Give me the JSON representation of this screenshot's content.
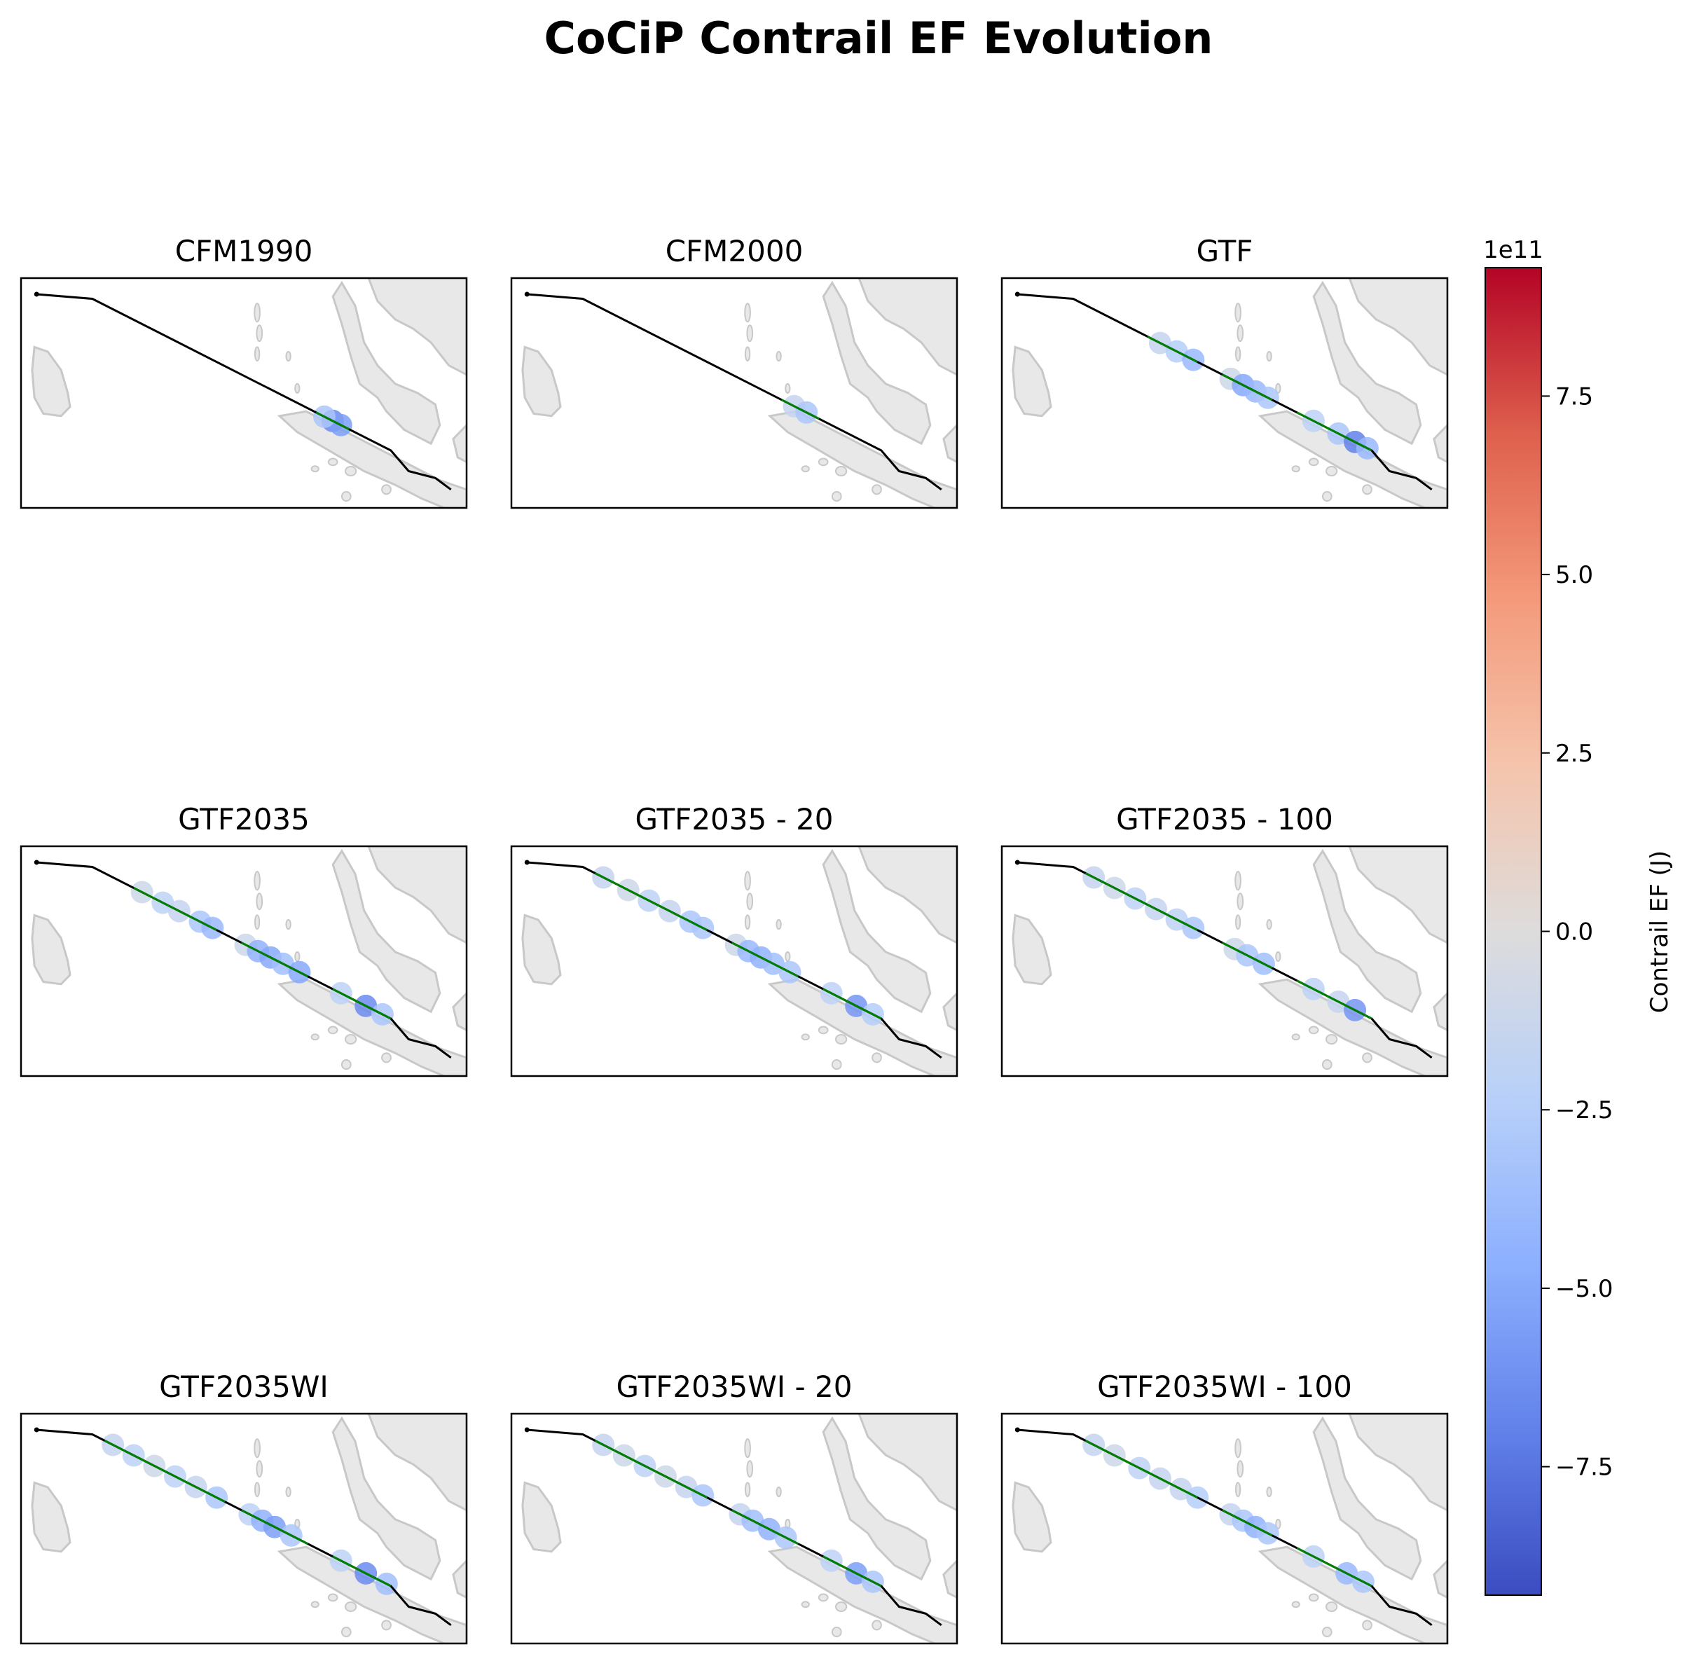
{
  "figure": {
    "title": "CoCiP Contrail EF Evolution"
  },
  "colorbar": {
    "label": "Contrail EF (J)",
    "offset_text": "1e11",
    "ticks": [
      "7.5",
      "5.0",
      "2.5",
      "0.0",
      "−2.5",
      "−5.0",
      "−7.5"
    ],
    "tick_values": [
      7.5,
      5.0,
      2.5,
      0.0,
      -2.5,
      -5.0,
      -7.5
    ],
    "range": [
      -9.3,
      9.3
    ],
    "colormap": "coolwarm",
    "colors": [
      "#3b4cc0",
      "#6282ea",
      "#8db0fe",
      "#b8d0f9",
      "#dddcdc",
      "#f5c4ac",
      "#f49a7b",
      "#de604d",
      "#b40426"
    ]
  },
  "colors": {
    "land": "#e8e8e8",
    "coast": "#c8c8c8",
    "flight_path": "#000000",
    "contrail_path": "#008000"
  },
  "chart_data": [
    {
      "type": "scatter",
      "title": "CFM1990",
      "contrail_segments": [
        [
          0.66,
          0.74
        ]
      ],
      "points": [
        {
          "t": 0.7,
          "ef": -6.5
        },
        {
          "t": 0.72,
          "ef": -5.5
        },
        {
          "t": 0.68,
          "ef": -3.0
        }
      ]
    },
    {
      "type": "scatter",
      "title": "CFM2000",
      "contrail_segments": [
        [
          0.6,
          0.69
        ]
      ],
      "points": [
        {
          "t": 0.63,
          "ef": -1.5
        },
        {
          "t": 0.66,
          "ef": -3.0
        }
      ]
    },
    {
      "type": "scatter",
      "title": "GTF",
      "contrail_segments": [
        [
          0.3,
          0.42
        ],
        [
          0.48,
          0.6
        ],
        [
          0.66,
          0.84
        ]
      ],
      "points": [
        {
          "t": 0.33,
          "ef": -1.5
        },
        {
          "t": 0.37,
          "ef": -2.5
        },
        {
          "t": 0.41,
          "ef": -4.0
        },
        {
          "t": 0.5,
          "ef": -1.0
        },
        {
          "t": 0.53,
          "ef": -5.0
        },
        {
          "t": 0.56,
          "ef": -4.0
        },
        {
          "t": 0.59,
          "ef": -3.0
        },
        {
          "t": 0.7,
          "ef": -2.0
        },
        {
          "t": 0.76,
          "ef": -3.0
        },
        {
          "t": 0.8,
          "ef": -7.0
        },
        {
          "t": 0.83,
          "ef": -4.0
        }
      ]
    },
    {
      "type": "scatter",
      "title": "GTF2035",
      "contrail_segments": [
        [
          0.22,
          0.42
        ],
        [
          0.48,
          0.64
        ],
        [
          0.7,
          0.84
        ]
      ],
      "points": [
        {
          "t": 0.24,
          "ef": -1.0
        },
        {
          "t": 0.29,
          "ef": -2.0
        },
        {
          "t": 0.33,
          "ef": -1.5
        },
        {
          "t": 0.38,
          "ef": -3.0
        },
        {
          "t": 0.41,
          "ef": -4.0
        },
        {
          "t": 0.49,
          "ef": -1.0
        },
        {
          "t": 0.52,
          "ef": -4.5
        },
        {
          "t": 0.55,
          "ef": -5.0
        },
        {
          "t": 0.58,
          "ef": -3.5
        },
        {
          "t": 0.62,
          "ef": -5.0
        },
        {
          "t": 0.72,
          "ef": -2.0
        },
        {
          "t": 0.78,
          "ef": -6.5
        },
        {
          "t": 0.82,
          "ef": -3.0
        }
      ]
    },
    {
      "type": "scatter",
      "title": "GTF2035 - 20",
      "contrail_segments": [
        [
          0.15,
          0.42
        ],
        [
          0.48,
          0.64
        ],
        [
          0.7,
          0.84
        ]
      ],
      "points": [
        {
          "t": 0.17,
          "ef": -1.5
        },
        {
          "t": 0.23,
          "ef": -1.0
        },
        {
          "t": 0.28,
          "ef": -2.0
        },
        {
          "t": 0.33,
          "ef": -1.5
        },
        {
          "t": 0.38,
          "ef": -3.0
        },
        {
          "t": 0.41,
          "ef": -3.0
        },
        {
          "t": 0.49,
          "ef": -1.0
        },
        {
          "t": 0.52,
          "ef": -4.0
        },
        {
          "t": 0.55,
          "ef": -4.5
        },
        {
          "t": 0.58,
          "ef": -3.5
        },
        {
          "t": 0.62,
          "ef": -3.0
        },
        {
          "t": 0.72,
          "ef": -2.0
        },
        {
          "t": 0.78,
          "ef": -6.0
        },
        {
          "t": 0.82,
          "ef": -2.5
        }
      ]
    },
    {
      "type": "scatter",
      "title": "GTF2035 - 100",
      "contrail_segments": [
        [
          0.15,
          0.42
        ],
        [
          0.48,
          0.6
        ],
        [
          0.66,
          0.84
        ]
      ],
      "points": [
        {
          "t": 0.17,
          "ef": -1.5
        },
        {
          "t": 0.22,
          "ef": -1.0
        },
        {
          "t": 0.27,
          "ef": -2.0
        },
        {
          "t": 0.32,
          "ef": -1.5
        },
        {
          "t": 0.37,
          "ef": -2.0
        },
        {
          "t": 0.41,
          "ef": -3.0
        },
        {
          "t": 0.51,
          "ef": -1.0
        },
        {
          "t": 0.54,
          "ef": -3.0
        },
        {
          "t": 0.58,
          "ef": -3.5
        },
        {
          "t": 0.7,
          "ef": -2.0
        },
        {
          "t": 0.76,
          "ef": -1.5
        },
        {
          "t": 0.8,
          "ef": -6.0
        }
      ]
    },
    {
      "type": "scatter",
      "title": "GTF2035WI",
      "contrail_segments": [
        [
          0.15,
          0.44
        ],
        [
          0.48,
          0.64
        ],
        [
          0.7,
          0.84
        ]
      ],
      "points": [
        {
          "t": 0.17,
          "ef": -1.5
        },
        {
          "t": 0.22,
          "ef": -2.0
        },
        {
          "t": 0.27,
          "ef": -1.0
        },
        {
          "t": 0.32,
          "ef": -2.0
        },
        {
          "t": 0.37,
          "ef": -1.5
        },
        {
          "t": 0.42,
          "ef": -3.0
        },
        {
          "t": 0.5,
          "ef": -2.0
        },
        {
          "t": 0.53,
          "ef": -4.5
        },
        {
          "t": 0.56,
          "ef": -5.5
        },
        {
          "t": 0.6,
          "ef": -3.0
        },
        {
          "t": 0.72,
          "ef": -2.0
        },
        {
          "t": 0.78,
          "ef": -6.5
        },
        {
          "t": 0.83,
          "ef": -3.5
        }
      ]
    },
    {
      "type": "scatter",
      "title": "GTF2035WI - 20",
      "contrail_segments": [
        [
          0.15,
          0.42
        ],
        [
          0.48,
          0.64
        ],
        [
          0.7,
          0.84
        ]
      ],
      "points": [
        {
          "t": 0.17,
          "ef": -1.5
        },
        {
          "t": 0.22,
          "ef": -1.0
        },
        {
          "t": 0.27,
          "ef": -2.0
        },
        {
          "t": 0.32,
          "ef": -1.0
        },
        {
          "t": 0.37,
          "ef": -1.5
        },
        {
          "t": 0.41,
          "ef": -3.0
        },
        {
          "t": 0.5,
          "ef": -1.5
        },
        {
          "t": 0.53,
          "ef": -3.5
        },
        {
          "t": 0.57,
          "ef": -4.5
        },
        {
          "t": 0.61,
          "ef": -3.0
        },
        {
          "t": 0.72,
          "ef": -2.0
        },
        {
          "t": 0.78,
          "ef": -5.5
        },
        {
          "t": 0.82,
          "ef": -3.0
        }
      ]
    },
    {
      "type": "scatter",
      "title": "GTF2035WI - 100",
      "contrail_segments": [
        [
          0.15,
          0.42
        ],
        [
          0.48,
          0.6
        ],
        [
          0.66,
          0.84
        ]
      ],
      "points": [
        {
          "t": 0.17,
          "ef": -1.5
        },
        {
          "t": 0.22,
          "ef": -1.0
        },
        {
          "t": 0.28,
          "ef": -2.0
        },
        {
          "t": 0.33,
          "ef": -1.5
        },
        {
          "t": 0.38,
          "ef": -1.5
        },
        {
          "t": 0.42,
          "ef": -2.5
        },
        {
          "t": 0.5,
          "ef": -1.5
        },
        {
          "t": 0.53,
          "ef": -3.0
        },
        {
          "t": 0.56,
          "ef": -4.5
        },
        {
          "t": 0.59,
          "ef": -3.0
        },
        {
          "t": 0.7,
          "ef": -2.0
        },
        {
          "t": 0.78,
          "ef": -4.0
        },
        {
          "t": 0.82,
          "ef": -3.0
        }
      ]
    }
  ]
}
